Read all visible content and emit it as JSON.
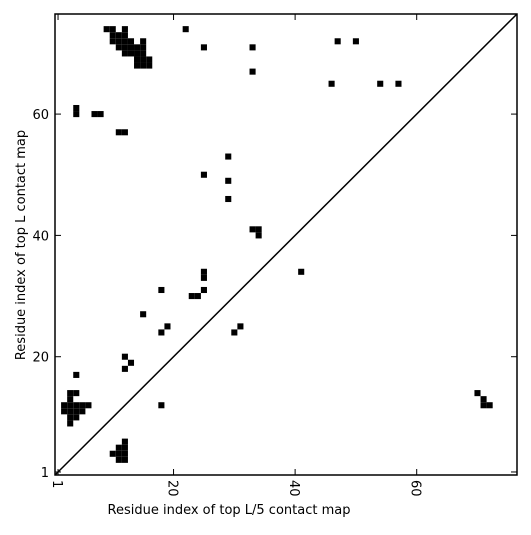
{
  "chart_data": {
    "type": "scatter",
    "marker": "square",
    "color": "#000000",
    "x_label": "Residue index of top L/5 contact map",
    "y_label": "Residue index of top L contact map",
    "xlim": [
      0.5,
      76.5
    ],
    "ylim": [
      0.5,
      76.5
    ],
    "xticks": [
      1,
      20,
      40,
      60
    ],
    "yticks": [
      1,
      20,
      40,
      60
    ],
    "x": [
      22,
      25,
      33,
      33,
      47,
      50,
      46,
      54,
      57,
      9,
      10,
      12,
      10,
      11,
      12,
      10,
      11,
      12,
      13,
      15,
      11,
      12,
      13,
      14,
      15,
      12,
      13,
      14,
      15,
      14,
      15,
      16,
      14,
      15,
      16,
      4,
      4,
      7,
      8,
      11,
      12,
      29,
      25,
      29,
      29,
      33,
      34,
      34,
      25,
      25,
      41,
      18,
      23,
      24,
      25,
      15,
      19,
      18,
      31,
      30,
      12,
      13,
      12,
      4,
      18,
      3,
      4,
      3,
      2,
      3,
      4,
      5,
      6,
      2,
      3,
      4,
      5,
      3,
      4,
      3,
      70,
      71,
      71,
      72,
      12,
      11,
      12,
      10,
      11,
      12,
      11,
      12
    ],
    "values": [
      74,
      71,
      71,
      67,
      72,
      72,
      65,
      65,
      65,
      74,
      74,
      74,
      73,
      73,
      73,
      72,
      72,
      72,
      72,
      72,
      71,
      71,
      71,
      71,
      71,
      70,
      70,
      70,
      70,
      69,
      69,
      69,
      68,
      68,
      68,
      61,
      60,
      60,
      60,
      57,
      57,
      53,
      50,
      49,
      46,
      41,
      41,
      40,
      34,
      33,
      34,
      31,
      30,
      30,
      31,
      27,
      25,
      24,
      25,
      24,
      20,
      19,
      18,
      17,
      12,
      14,
      14,
      13,
      12,
      12,
      12,
      12,
      12,
      11,
      11,
      11,
      11,
      10,
      10,
      9,
      14,
      13,
      12,
      12,
      6,
      5,
      5,
      4,
      4,
      4,
      3,
      3
    ]
  }
}
